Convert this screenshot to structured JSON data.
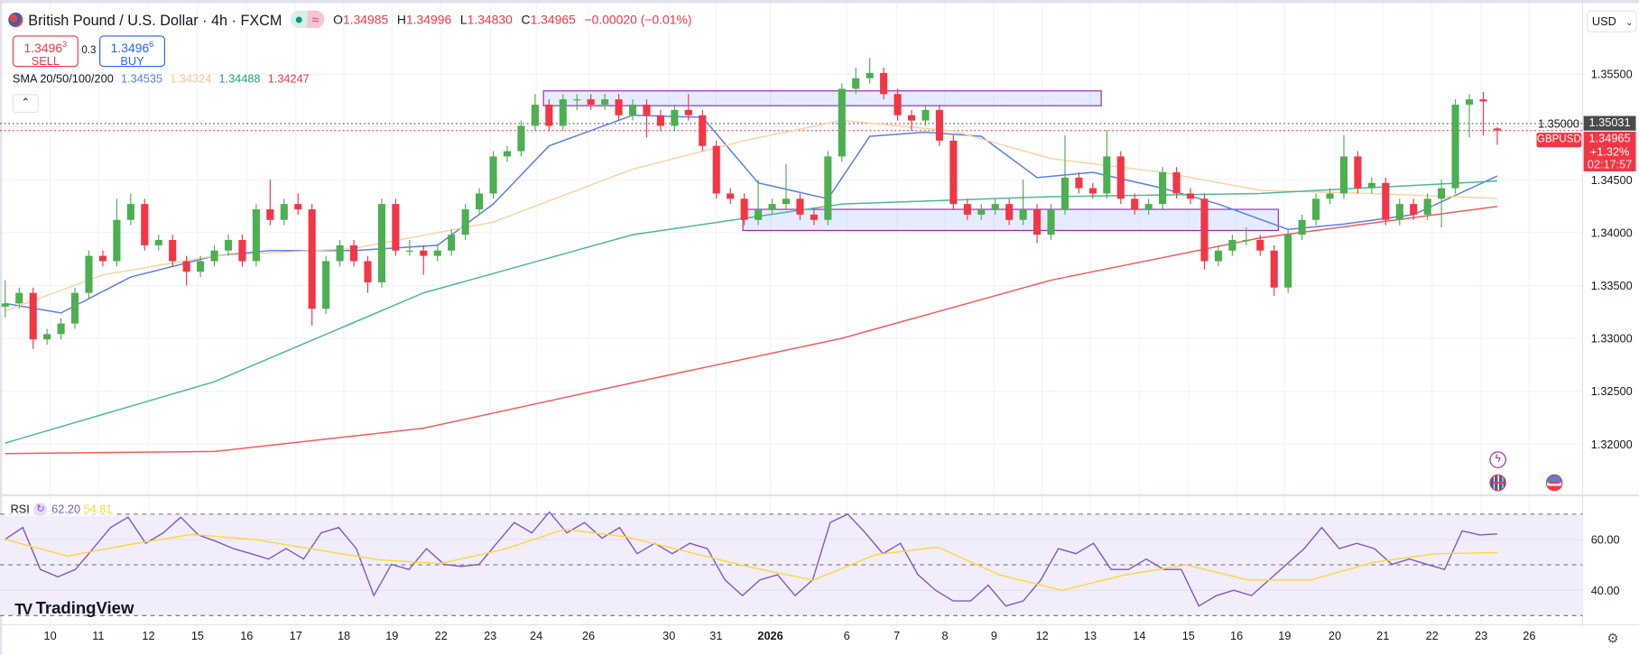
{
  "header": {
    "title": "British Pound / U.S. Dollar · 4h · FXCM",
    "status_icons": [
      "market-open-dot-icon",
      "approx-data-icon"
    ],
    "ohlc": {
      "o_label": "O",
      "o": "1.34985",
      "h_label": "H",
      "h": "1.34996",
      "l_label": "L",
      "l": "1.34830",
      "c_label": "C",
      "c": "1.34965",
      "change": "−0.00020 (−0.01%)"
    }
  },
  "trade": {
    "sell_price": "1.3496",
    "sell_sup": "3",
    "sell_label": "SELL",
    "spread": "0.3",
    "buy_price": "1.3496",
    "buy_sup": "6",
    "buy_label": "BUY"
  },
  "sma_legend": {
    "label": "SMA 20/50/100/200",
    "v20": "1.34535",
    "v50": "1.34324",
    "v100": "1.34488",
    "v200": "1.34247"
  },
  "collapse_icon": "chevron-up-icon",
  "currency": {
    "value": "USD"
  },
  "price_badges": {
    "prev_close": "1.35031",
    "symbol": "GBPUSD",
    "last": "1.34965",
    "change_pct": "+1.32%",
    "countdown": "02:17:57"
  },
  "events": [
    "lightning-icon",
    "uk-flag-icon",
    "us-flag-icon"
  ],
  "rsi_legend": {
    "label": "RSI",
    "value": "62.20",
    "ma_value": "54.81"
  },
  "logo": "TradingView",
  "colors": {
    "up": "#4caf50",
    "down": "#f23645",
    "sma20": "#5b7fe6",
    "sma50": "#fbd4a4",
    "sma100": "#4db89b",
    "sma200": "#f45b5b",
    "rsi": "#7e57c2",
    "rsi_ma": "#fdd835",
    "rsi_band": "#f1edfa",
    "drawing": "#9c27b0"
  },
  "chart_data": [
    {
      "type": "candlestick",
      "symbol": "GBPUSD",
      "interval": "4h",
      "y_ticks": [
        "1.35500",
        "1.35000",
        "1.34500",
        "1.34000",
        "1.33500",
        "1.33000",
        "1.32500",
        "1.32000"
      ],
      "y_tick_values": [
        1.355,
        1.35,
        1.345,
        1.34,
        1.335,
        1.33,
        1.325,
        1.32
      ],
      "ylim": [
        1.3158,
        1.3612
      ],
      "x_ticks": [
        "10",
        "11",
        "12",
        "15",
        "16",
        "17",
        "18",
        "19",
        "22",
        "23",
        "24",
        "26",
        "30",
        "31",
        "2026",
        "6",
        "7",
        "8",
        "9",
        "12",
        "13",
        "14",
        "15",
        "16",
        "19",
        "20",
        "21",
        "22",
        "23",
        "26"
      ],
      "grid": true,
      "candles_ohlc": [
        [
          1.333,
          1.3355,
          1.332,
          1.3333
        ],
        [
          1.3333,
          1.3348,
          1.3328,
          1.3343
        ],
        [
          1.3343,
          1.3348,
          1.329,
          1.3299
        ],
        [
          1.3299,
          1.3309,
          1.3294,
          1.3304
        ],
        [
          1.3304,
          1.3319,
          1.3299,
          1.3314
        ],
        [
          1.3314,
          1.3348,
          1.3309,
          1.3343
        ],
        [
          1.3343,
          1.3383,
          1.3338,
          1.3378
        ],
        [
          1.3378,
          1.3383,
          1.3368,
          1.3373
        ],
        [
          1.3373,
          1.3432,
          1.3368,
          1.3412
        ],
        [
          1.3412,
          1.3437,
          1.3407,
          1.3427
        ],
        [
          1.3427,
          1.3432,
          1.3383,
          1.3388
        ],
        [
          1.3388,
          1.3398,
          1.3383,
          1.3393
        ],
        [
          1.3393,
          1.3398,
          1.3368,
          1.3373
        ],
        [
          1.3373,
          1.3378,
          1.335,
          1.3363
        ],
        [
          1.3363,
          1.3378,
          1.3358,
          1.3373
        ],
        [
          1.3373,
          1.3388,
          1.3368,
          1.3383
        ],
        [
          1.3383,
          1.3398,
          1.3378,
          1.3393
        ],
        [
          1.3393,
          1.3398,
          1.3368,
          1.3373
        ],
        [
          1.3373,
          1.3427,
          1.3368,
          1.3422
        ],
        [
          1.3422,
          1.345,
          1.3407,
          1.3412
        ],
        [
          1.3412,
          1.3432,
          1.3407,
          1.3427
        ],
        [
          1.3427,
          1.3437,
          1.3417,
          1.3422
        ],
        [
          1.3422,
          1.3427,
          1.3312,
          1.3328
        ],
        [
          1.3328,
          1.3378,
          1.3323,
          1.3373
        ],
        [
          1.3373,
          1.3393,
          1.3368,
          1.3388
        ],
        [
          1.3388,
          1.3393,
          1.3368,
          1.3373
        ],
        [
          1.3373,
          1.3378,
          1.3343,
          1.3353
        ],
        [
          1.3353,
          1.3432,
          1.3348,
          1.3427
        ],
        [
          1.3427,
          1.3432,
          1.3378,
          1.3383
        ],
        [
          1.3383,
          1.3393,
          1.3378,
          1.3383
        ],
        [
          1.3383,
          1.3388,
          1.336,
          1.3378
        ],
        [
          1.3378,
          1.3388,
          1.3373,
          1.3383
        ],
        [
          1.3383,
          1.3403,
          1.3378,
          1.3398
        ],
        [
          1.3398,
          1.3427,
          1.3393,
          1.3422
        ],
        [
          1.3422,
          1.3442,
          1.3417,
          1.3437
        ],
        [
          1.3437,
          1.3477,
          1.3432,
          1.3472
        ],
        [
          1.3472,
          1.3482,
          1.3467,
          1.3477
        ],
        [
          1.3477,
          1.3506,
          1.3472,
          1.3501
        ],
        [
          1.3501,
          1.3531,
          1.3496,
          1.3521
        ],
        [
          1.3521,
          1.3526,
          1.3496,
          1.3501
        ],
        [
          1.3501,
          1.3531,
          1.3496,
          1.3526
        ],
        [
          1.3526,
          1.3531,
          1.3516,
          1.3526
        ],
        [
          1.3526,
          1.3531,
          1.3516,
          1.3521
        ],
        [
          1.3521,
          1.3531,
          1.3516,
          1.3526
        ],
        [
          1.3526,
          1.3531,
          1.3506,
          1.3511
        ],
        [
          1.3511,
          1.3526,
          1.3506,
          1.3521
        ],
        [
          1.3521,
          1.3526,
          1.349,
          1.3511
        ],
        [
          1.3511,
          1.3516,
          1.3496,
          1.3501
        ],
        [
          1.3501,
          1.3521,
          1.3496,
          1.3516
        ],
        [
          1.3516,
          1.3531,
          1.3506,
          1.3511
        ],
        [
          1.3511,
          1.3516,
          1.3477,
          1.3482
        ],
        [
          1.3482,
          1.3487,
          1.3432,
          1.3437
        ],
        [
          1.3437,
          1.3442,
          1.3427,
          1.3432
        ],
        [
          1.3432,
          1.3437,
          1.3407,
          1.3412
        ],
        [
          1.3412,
          1.345,
          1.3407,
          1.3422
        ],
        [
          1.3422,
          1.3432,
          1.3417,
          1.3427
        ],
        [
          1.3427,
          1.3465,
          1.3422,
          1.3432
        ],
        [
          1.3432,
          1.3437,
          1.3412,
          1.3417
        ],
        [
          1.3417,
          1.3422,
          1.3407,
          1.3412
        ],
        [
          1.3412,
          1.3477,
          1.3407,
          1.3472
        ],
        [
          1.3472,
          1.3541,
          1.3467,
          1.3536
        ],
        [
          1.3536,
          1.3556,
          1.3531,
          1.3546
        ],
        [
          1.3546,
          1.3565,
          1.3541,
          1.3551
        ],
        [
          1.3551,
          1.3556,
          1.3526,
          1.3531
        ],
        [
          1.3531,
          1.3536,
          1.3506,
          1.3511
        ],
        [
          1.3511,
          1.3516,
          1.3496,
          1.3506
        ],
        [
          1.3506,
          1.3521,
          1.3501,
          1.3516
        ],
        [
          1.3516,
          1.3521,
          1.3482,
          1.3487
        ],
        [
          1.3487,
          1.3492,
          1.3422,
          1.3427
        ],
        [
          1.3427,
          1.3432,
          1.3412,
          1.3417
        ],
        [
          1.3417,
          1.3427,
          1.3412,
          1.3422
        ],
        [
          1.3422,
          1.3432,
          1.3417,
          1.3427
        ],
        [
          1.3427,
          1.3432,
          1.3407,
          1.3412
        ],
        [
          1.3412,
          1.345,
          1.3407,
          1.3422
        ],
        [
          1.3422,
          1.3427,
          1.339,
          1.3398
        ],
        [
          1.3398,
          1.3427,
          1.3393,
          1.3422
        ],
        [
          1.3422,
          1.3492,
          1.3417,
          1.3452
        ],
        [
          1.3452,
          1.3457,
          1.3437,
          1.3442
        ],
        [
          1.3442,
          1.3447,
          1.3432,
          1.3437
        ],
        [
          1.3437,
          1.3497,
          1.3432,
          1.3472
        ],
        [
          1.3472,
          1.3477,
          1.3427,
          1.3432
        ],
        [
          1.3432,
          1.3437,
          1.3417,
          1.3422
        ],
        [
          1.3422,
          1.3432,
          1.3417,
          1.3427
        ],
        [
          1.3427,
          1.3462,
          1.3422,
          1.3457
        ],
        [
          1.3457,
          1.3462,
          1.3432,
          1.3437
        ],
        [
          1.3437,
          1.3442,
          1.3427,
          1.3432
        ],
        [
          1.3432,
          1.3437,
          1.3365,
          1.3373
        ],
        [
          1.3373,
          1.3388,
          1.3368,
          1.3383
        ],
        [
          1.3383,
          1.3398,
          1.3378,
          1.3393
        ],
        [
          1.3393,
          1.3405,
          1.3388,
          1.3393
        ],
        [
          1.3393,
          1.3398,
          1.3378,
          1.3383
        ],
        [
          1.3383,
          1.3388,
          1.334,
          1.3348
        ],
        [
          1.3348,
          1.3403,
          1.3343,
          1.3398
        ],
        [
          1.3398,
          1.3417,
          1.3393,
          1.3412
        ],
        [
          1.3412,
          1.3437,
          1.3407,
          1.3432
        ],
        [
          1.3432,
          1.3442,
          1.3427,
          1.3437
        ],
        [
          1.3437,
          1.3492,
          1.3432,
          1.3472
        ],
        [
          1.3472,
          1.3477,
          1.3437,
          1.3442
        ],
        [
          1.3442,
          1.3452,
          1.3437,
          1.3447
        ],
        [
          1.3447,
          1.3452,
          1.3407,
          1.3412
        ],
        [
          1.3412,
          1.3432,
          1.3407,
          1.3427
        ],
        [
          1.3427,
          1.3432,
          1.3412,
          1.3417
        ],
        [
          1.3417,
          1.3437,
          1.3412,
          1.3432
        ],
        [
          1.3432,
          1.345,
          1.3405,
          1.3442
        ],
        [
          1.3442,
          1.3526,
          1.3437,
          1.3521
        ],
        [
          1.3521,
          1.3531,
          1.349,
          1.3526
        ],
        [
          1.3526,
          1.3533,
          1.3492,
          1.3524
        ],
        [
          1.34985,
          1.34996,
          1.3483,
          1.34965
        ]
      ],
      "sma": [
        {
          "name": "SMA 20",
          "color": "#5b7fe6",
          "points": [
            [
              0,
              1.3333
            ],
            [
              4,
              1.3324
            ],
            [
              9,
              1.3358
            ],
            [
              15,
              1.3378
            ],
            [
              19,
              1.3383
            ],
            [
              25,
              1.3383
            ],
            [
              31,
              1.3388
            ],
            [
              35,
              1.3427
            ],
            [
              39,
              1.3482
            ],
            [
              45,
              1.3511
            ],
            [
              50,
              1.3509
            ],
            [
              54,
              1.3447
            ],
            [
              59,
              1.3432
            ],
            [
              62,
              1.3491
            ],
            [
              66,
              1.3495
            ],
            [
              70,
              1.3491
            ],
            [
              74,
              1.3452
            ],
            [
              78,
              1.3457
            ],
            [
              83,
              1.3442
            ],
            [
              87,
              1.3427
            ],
            [
              92,
              1.3403
            ],
            [
              96,
              1.3408
            ],
            [
              101,
              1.3417
            ],
            [
              107,
              1.34535
            ]
          ]
        },
        {
          "name": "SMA 50",
          "color": "#fbd4a4",
          "points": [
            [
              0,
              1.3326
            ],
            [
              7,
              1.336
            ],
            [
              15,
              1.3378
            ],
            [
              25,
              1.3385
            ],
            [
              35,
              1.341
            ],
            [
              45,
              1.346
            ],
            [
              53,
              1.3487
            ],
            [
              60,
              1.3506
            ],
            [
              68,
              1.3496
            ],
            [
              75,
              1.347
            ],
            [
              83,
              1.3457
            ],
            [
              90,
              1.344
            ],
            [
              98,
              1.3437
            ],
            [
              107,
              1.34324
            ]
          ]
        },
        {
          "name": "SMA 100",
          "color": "#4db89b",
          "points": [
            [
              0,
              1.3201
            ],
            [
              15,
              1.3259
            ],
            [
              30,
              1.3343
            ],
            [
              45,
              1.3398
            ],
            [
              60,
              1.3427
            ],
            [
              75,
              1.3434
            ],
            [
              90,
              1.3437
            ],
            [
              107,
              1.34488
            ]
          ]
        },
        {
          "name": "SMA 200",
          "color": "#f45b5b",
          "points": [
            [
              0,
              1.3191
            ],
            [
              15,
              1.3193
            ],
            [
              30,
              1.3215
            ],
            [
              45,
              1.3258
            ],
            [
              60,
              1.33
            ],
            [
              75,
              1.3355
            ],
            [
              90,
              1.3395
            ],
            [
              107,
              1.34247
            ]
          ]
        }
      ],
      "drawings": [
        {
          "type": "rectangle",
          "bar_from": 38.6,
          "bar_to": 78.6,
          "price_top": 1.3534,
          "price_bottom": 1.352
        },
        {
          "type": "rectangle",
          "bar_from": 52.9,
          "bar_to": 91.3,
          "price_top": 1.3422,
          "price_bottom": 1.3402
        }
      ],
      "price_lines": [
        {
          "value": 1.35031,
          "style": "dotted",
          "color": "#555555"
        },
        {
          "value": 1.34965,
          "style": "dotted",
          "color": "#f23645"
        }
      ]
    },
    {
      "type": "line",
      "name": "RSI",
      "ylim": [
        25,
        75
      ],
      "y_ticks": [
        "60.00",
        "40.00"
      ],
      "y_tick_values": [
        60,
        40
      ],
      "band": [
        30,
        70
      ],
      "dashed_levels": [
        70,
        50,
        30
      ],
      "rsi": [
        60.1,
        64.7,
        48.2,
        45.3,
        48.2,
        56.4,
        64.7,
        68.8,
        58.5,
        62.6,
        68.8,
        61.8,
        59.3,
        56.4,
        54.4,
        52.3,
        56.4,
        52.3,
        62.6,
        64.7,
        56.4,
        37.9,
        50.2,
        48.2,
        56.4,
        50.2,
        49.4,
        50.2,
        58.5,
        66.7,
        62.6,
        70.8,
        62.6,
        66.7,
        60.5,
        64.7,
        54.4,
        58.5,
        54.4,
        58.5,
        56.4,
        44.1,
        37.9,
        44.1,
        46.1,
        37.9,
        44.1,
        66.7,
        70.0,
        62.6,
        54.4,
        58.5,
        46.1,
        40.0,
        35.8,
        35.8,
        42.0,
        33.8,
        35.8,
        44.1,
        56.4,
        54.4,
        58.5,
        48.2,
        48.2,
        52.3,
        48.2,
        48.2,
        33.8,
        37.9,
        40.0,
        37.9,
        44.1,
        50.2,
        56.4,
        64.7,
        56.4,
        58.5,
        56.4,
        50.2,
        52.3,
        50.2,
        48.2,
        63.4,
        61.8,
        62.2
      ],
      "rsi_ma": [
        60,
        53.5,
        58,
        62,
        60,
        56,
        52,
        50.5,
        56,
        64,
        61,
        55,
        49,
        44,
        54,
        57,
        46,
        40,
        46,
        50,
        44,
        44,
        51,
        54.4,
        54.81
      ]
    }
  ]
}
